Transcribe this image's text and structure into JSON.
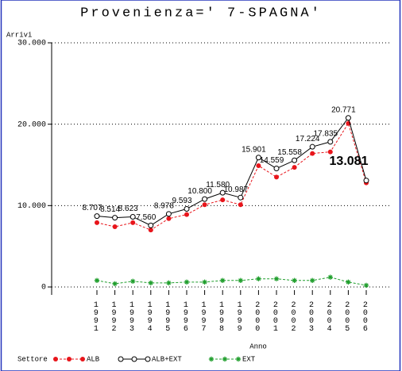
{
  "chart_data": {
    "type": "line",
    "title": "Provenienza=' 7-SPAGNA'",
    "y_label": "Arrivi",
    "x_label": "Anno",
    "legend_title": "Settore",
    "categories": [
      "1991",
      "1992",
      "1993",
      "1994",
      "1995",
      "1996",
      "1997",
      "1998",
      "1999",
      "2000",
      "2001",
      "2002",
      "2003",
      "2004",
      "2005",
      "2006"
    ],
    "series": [
      {
        "name": "ALB",
        "color": "#e8151b",
        "marker": "filled-circle",
        "dash": true,
        "values": [
          7900,
          7400,
          7900,
          7000,
          8400,
          8900,
          10100,
          10700,
          10100,
          14900,
          13500,
          14700,
          16400,
          16600,
          20100,
          12800
        ]
      },
      {
        "name": "ALB+EXT",
        "color": "#000000",
        "marker": "open-circle",
        "dash": false,
        "values": [
          8707,
          8514,
          8623,
          7560,
          8978,
          9593,
          10800,
          11580,
          10987,
          15901,
          14559,
          15558,
          17224,
          17835,
          20771,
          13081
        ],
        "value_labels": [
          "8.707",
          "8.514",
          "8.623",
          "7.560",
          "8.978",
          "9.593",
          "10.800",
          "11.580",
          "10.987",
          "15.901",
          "14.559",
          "15.558",
          "17.224",
          "17.835",
          "20.771",
          "13.081"
        ]
      },
      {
        "name": "EXT",
        "color": "#1f9e2c",
        "marker": "asterisk",
        "dash": true,
        "values": [
          800,
          400,
          700,
          500,
          500,
          600,
          600,
          800,
          800,
          1000,
          1000,
          800,
          800,
          1200,
          600,
          200
        ]
      }
    ],
    "ylim": [
      0,
      30000
    ],
    "yticks": [
      0,
      {
        "value": 10000,
        "label": "10.000"
      },
      {
        "value": 20000,
        "label": "20.000"
      },
      {
        "value": 30000,
        "label": "30.000"
      }
    ],
    "grid": true
  }
}
